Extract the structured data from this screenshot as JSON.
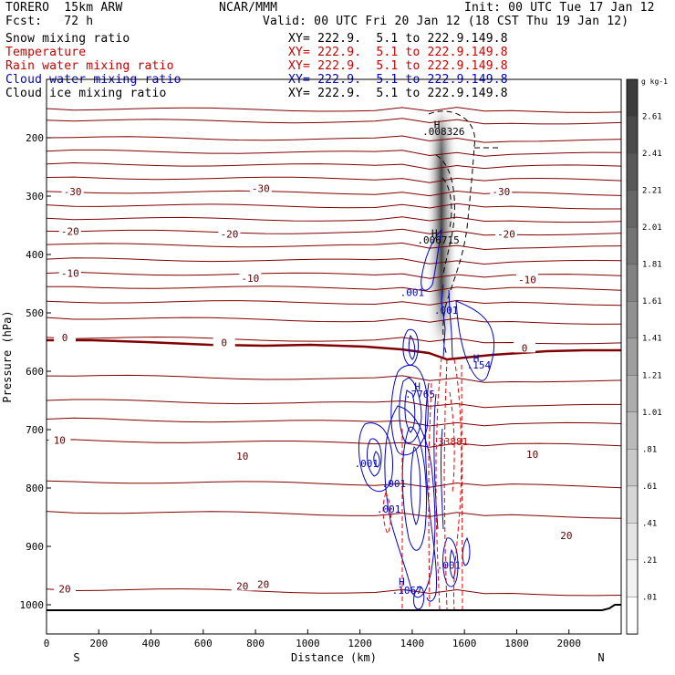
{
  "header": {
    "model": "TORERO  15km ARW",
    "center": "NCAR/MMM",
    "init": "Init: 00 UTC Tue 17 Jan 12",
    "fcst": "Fcst:   72 h",
    "valid": "Valid: 00 UTC Fri 20 Jan 12 (18 CST Thu 19 Jan 12)"
  },
  "fields": [
    {
      "name": "Snow mixing ratio",
      "color": "#000000"
    },
    {
      "name": "Temperature",
      "color": "#cc0000"
    },
    {
      "name": "Rain water mixing ratio",
      "color": "#cc0000"
    },
    {
      "name": "Cloud water mixing ratio",
      "color": "#0000cc"
    },
    {
      "name": "Cloud ice mixing ratio",
      "color": "#000000"
    }
  ],
  "xy_label": "XY= 222.9.  5.1 to 222.9.149.8",
  "chart_data": {
    "type": "cross-section",
    "xlabel": "Distance (km)",
    "ylabel": "Pressure (hPa)",
    "xlim": [
      0,
      2200
    ],
    "ylim": [
      1050,
      100
    ],
    "x_ticks": [
      0,
      200,
      400,
      600,
      800,
      1000,
      1200,
      1400,
      1600,
      1800,
      2000
    ],
    "y_ticks": [
      200,
      300,
      400,
      500,
      600,
      700,
      800,
      900,
      1000
    ],
    "y_scale": "linear-inverted",
    "end_labels": {
      "left": "S",
      "right": "N"
    },
    "colorbar": {
      "unit": "g kg-1",
      "labels": [
        "2.61",
        "2.41",
        "2.21",
        "2.01",
        "1.81",
        "1.61",
        "1.41",
        "1.21",
        "1.01",
        ".81",
        ".61",
        ".41",
        ".21",
        ".01"
      ],
      "colors": [
        "#3c3c3c",
        "#4a4a4a",
        "#585858",
        "#666666",
        "#747474",
        "#828282",
        "#909090",
        "#9e9e9e",
        "#acacac",
        "#bababa",
        "#c8c8c8",
        "#d6d6d6",
        "#e4e4e4",
        "#f2f2f2",
        "#ffffff"
      ]
    },
    "temperature_labels": [
      {
        "text": "-30",
        "x": 100,
        "p": 292
      },
      {
        "text": "-30",
        "x": 820,
        "p": 287
      },
      {
        "text": "-30",
        "x": 1740,
        "p": 292
      },
      {
        "text": "-20",
        "x": 90,
        "p": 360
      },
      {
        "text": "-20",
        "x": 700,
        "p": 365
      },
      {
        "text": "-20",
        "x": 1760,
        "p": 365
      },
      {
        "text": "-10",
        "x": 90,
        "p": 432
      },
      {
        "text": "-10",
        "x": 780,
        "p": 441
      },
      {
        "text": "-10",
        "x": 1840,
        "p": 443
      },
      {
        "text": "0",
        "x": 70,
        "p": 542
      },
      {
        "text": "0",
        "x": 680,
        "p": 551
      },
      {
        "text": "0",
        "x": 1830,
        "p": 560
      },
      {
        "text": "10",
        "x": 50,
        "p": 718
      },
      {
        "text": "10",
        "x": 750,
        "p": 745
      },
      {
        "text": "10",
        "x": 1860,
        "p": 742
      },
      {
        "text": "20",
        "x": 1990,
        "p": 881
      },
      {
        "text": "20",
        "x": 70,
        "p": 973
      },
      {
        "text": "20",
        "x": 750,
        "p": 968
      },
      {
        "text": "20",
        "x": 830,
        "p": 965
      }
    ],
    "temperature_contours_p_left": [
      150,
      170,
      200,
      223,
      245,
      268,
      292,
      315,
      338,
      360,
      383,
      408,
      432,
      455,
      480,
      508,
      542,
      608,
      650,
      682,
      718,
      788,
      840,
      973
    ],
    "freezing_level_hpa": 545,
    "annotations": [
      {
        "text": "H",
        "x": 1495,
        "p": 177
      },
      {
        "text": ".008326",
        "x": 1520,
        "p": 189
      },
      {
        "text": "H",
        "x": 1485,
        "p": 363
      },
      {
        "text": ".006715",
        "x": 1500,
        "p": 375
      },
      {
        "text": ".001",
        "x": 1400,
        "p": 465
      },
      {
        "text": ".001",
        "x": 1530,
        "p": 495
      },
      {
        "text": "H",
        "x": 1645,
        "p": 577
      },
      {
        "text": ".154",
        "x": 1655,
        "p": 589
      },
      {
        "text": "H",
        "x": 1420,
        "p": 626
      },
      {
        "text": ".7765",
        "x": 1430,
        "p": 639
      },
      {
        "text": ".33881",
        "x": 1545,
        "p": 720
      },
      {
        "text": ".001",
        "x": 1225,
        "p": 758
      },
      {
        "text": ".001",
        "x": 1330,
        "p": 792
      },
      {
        "text": ".001",
        "x": 1310,
        "p": 836
      },
      {
        "text": ".001",
        "x": 1540,
        "p": 932
      },
      {
        "text": "H",
        "x": 1360,
        "p": 960
      },
      {
        "text": ".1067",
        "x": 1380,
        "p": 975
      }
    ]
  }
}
